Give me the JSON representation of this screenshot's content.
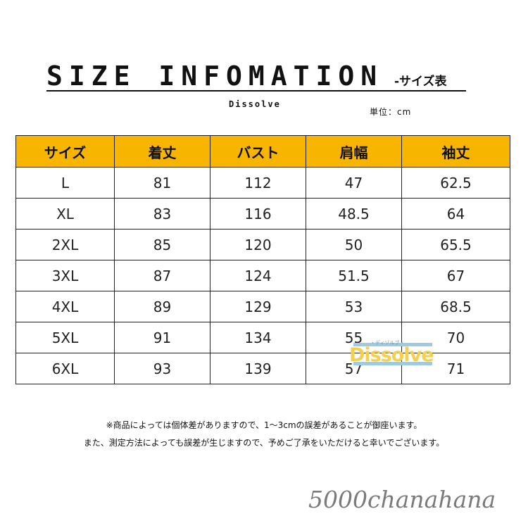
{
  "header": {
    "title": "SIZE INFOMATION",
    "subtitle": "-サイズ表",
    "brand": "Dissolve",
    "unit": "単位：cm"
  },
  "table": {
    "columns": [
      "サイズ",
      "着丈",
      "バスト",
      "肩幅",
      "袖丈"
    ],
    "header_color": "#f7b500",
    "rows": [
      [
        "L",
        "81",
        "112",
        "47",
        "62.5"
      ],
      [
        "XL",
        "83",
        "116",
        "48.5",
        "64"
      ],
      [
        "2XL",
        "85",
        "120",
        "50",
        "65.5"
      ],
      [
        "3XL",
        "87",
        "124",
        "51.5",
        "67"
      ],
      [
        "4XL",
        "89",
        "129",
        "53",
        "68.5"
      ],
      [
        "5XL",
        "91",
        "134",
        "55",
        "70"
      ],
      [
        "6XL",
        "93",
        "139",
        "57",
        "71"
      ]
    ]
  },
  "watermark": {
    "text": "Dissolve",
    "kana": "・ディゾルブ・"
  },
  "notes": [
    "※商品によっては個体差がありますので、1～3cmの誤差があることが御座います。",
    "また、測定方法によっても誤差が生じますので、予めご了承をいただけると幸いでございます。"
  ],
  "signature": "5000chanahana"
}
